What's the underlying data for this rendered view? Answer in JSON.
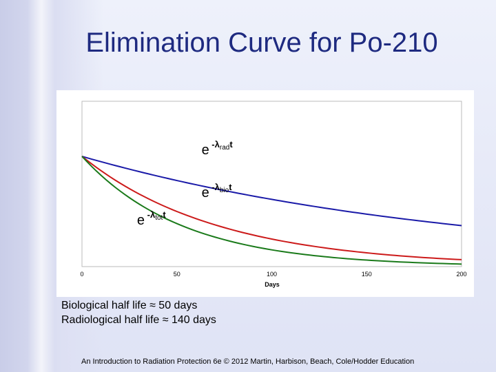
{
  "slide": {
    "title": "Elimination Curve for Po-210",
    "caption_lines": [
      "Biological half life ≈ 50 days",
      "Radiological half life ≈ 140 days"
    ],
    "footer": "An Introduction to Radiation Protection 6e © 2012 Martin, Harbison, Beach, Cole/Hodder Education"
  },
  "chart_data": {
    "type": "line",
    "title": "",
    "xlabel": "Days",
    "ylabel": "",
    "xlim": [
      0,
      200
    ],
    "ylim": [
      0,
      1.5
    ],
    "x_ticks": [
      0,
      50,
      100,
      150,
      200
    ],
    "grid": false,
    "legend": "none",
    "series": [
      {
        "color": "#1a1aa8",
        "x": [
          0,
          25,
          50,
          75,
          100,
          125,
          150,
          175,
          200
        ],
        "y": [
          1.0,
          0.884,
          0.781,
          0.69,
          0.61,
          0.539,
          0.476,
          0.421,
          0.372
        ]
      },
      {
        "color": "#cc1a1a",
        "x": [
          0,
          25,
          50,
          75,
          100,
          125,
          150,
          175,
          200
        ],
        "y": [
          1.0,
          0.707,
          0.5,
          0.354,
          0.25,
          0.177,
          0.125,
          0.088,
          0.063
        ]
      },
      {
        "color": "#1a7a1a",
        "x": [
          0,
          25,
          50,
          75,
          100,
          125,
          150,
          175,
          200
        ],
        "y": [
          1.0,
          0.625,
          0.39,
          0.244,
          0.152,
          0.095,
          0.059,
          0.037,
          0.023
        ]
      }
    ],
    "annotations": [
      {
        "base": "e",
        "exp_prefix": "-λ",
        "sub": "rad",
        "suffix": "t",
        "x": 63,
        "y": 1.02
      },
      {
        "base": "e",
        "exp_prefix": "-λ",
        "sub": "bio",
        "suffix": "t",
        "x": 63,
        "y": 0.63
      },
      {
        "base": "e",
        "exp_prefix": "-λ",
        "sub": "tot",
        "suffix": "t",
        "x": 29,
        "y": 0.38
      }
    ]
  }
}
